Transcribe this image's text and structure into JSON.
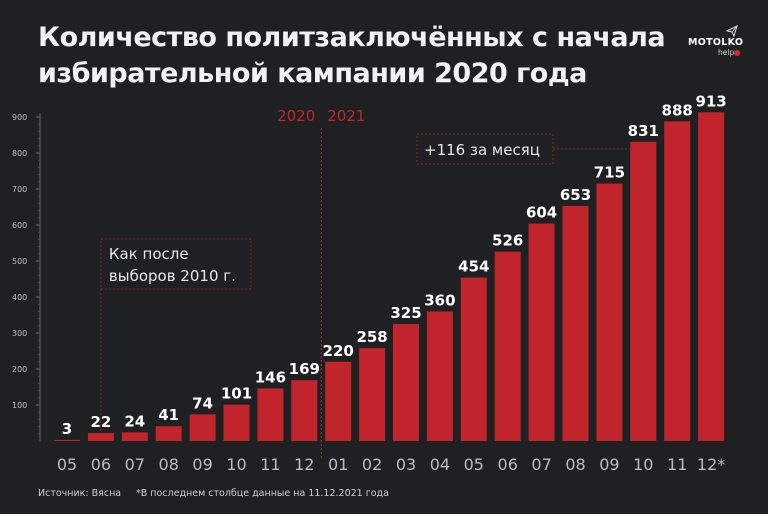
{
  "header": {
    "title_line1": "Количество политзаключённых с начала",
    "title_line2": "избирательной кампании 2020 года"
  },
  "logo": {
    "main": "MOTOLKO",
    "sub": "help",
    "icon": "paper-plane-icon",
    "dot_color": "#e0262c"
  },
  "footer": {
    "source": "Источник: Вясна",
    "note": "*В последнем столбце данные на 11.12.2021 года"
  },
  "colors": {
    "bar": "#c1252b",
    "background": "#1f2022",
    "year_label": "#c1252b",
    "annotation_border": "#8a2a2c"
  },
  "chart_data": {
    "type": "bar",
    "title": "Количество политзаключённых с начала избирательной кампании 2020 года",
    "xlabel": "",
    "ylabel": "",
    "ylim": [
      0,
      900
    ],
    "yticks": [
      100,
      200,
      300,
      400,
      500,
      600,
      700,
      800,
      900
    ],
    "grid": false,
    "categories": [
      "05",
      "06",
      "07",
      "08",
      "09",
      "10",
      "11",
      "12",
      "01",
      "02",
      "03",
      "04",
      "05",
      "06",
      "07",
      "08",
      "09",
      "10",
      "11",
      "12*"
    ],
    "values": [
      3,
      22,
      24,
      41,
      74,
      101,
      146,
      169,
      220,
      258,
      325,
      360,
      454,
      526,
      604,
      653,
      715,
      831,
      888,
      913
    ],
    "year_labels": [
      "2020",
      "2021"
    ],
    "year_divider_after_index": 7,
    "annotations": [
      {
        "text_line1": "Как после",
        "text_line2": "выборов 2010 г.",
        "points_to_index": 1
      },
      {
        "text": "+116 за месяц",
        "points_to_index": 17
      }
    ]
  }
}
